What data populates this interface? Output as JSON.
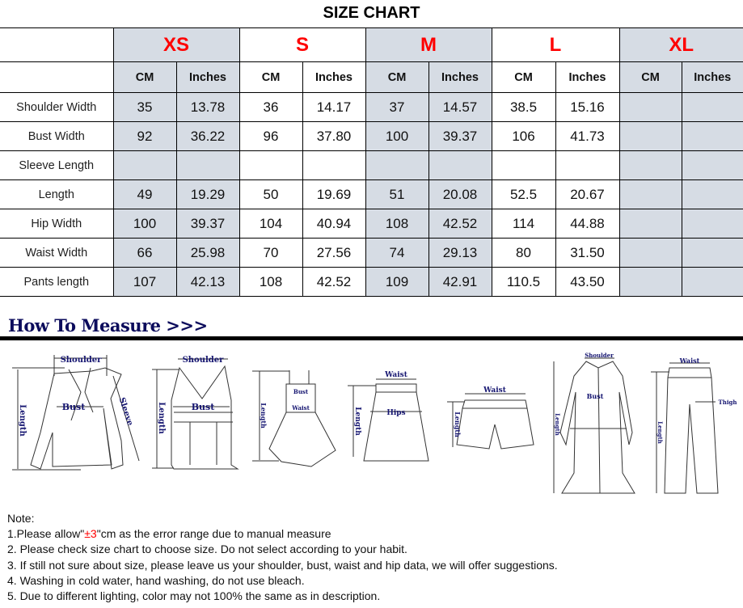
{
  "title": "SIZE CHART",
  "sizes": [
    "XS",
    "S",
    "M",
    "L",
    "XL"
  ],
  "units": [
    "CM",
    "Inches"
  ],
  "rows": [
    {
      "label": "Shoulder Width",
      "values": [
        "35",
        "13.78",
        "36",
        "14.17",
        "37",
        "14.57",
        "38.5",
        "15.16",
        "",
        ""
      ]
    },
    {
      "label": "Bust Width",
      "values": [
        "92",
        "36.22",
        "96",
        "37.80",
        "100",
        "39.37",
        "106",
        "41.73",
        "",
        ""
      ]
    },
    {
      "label": "Sleeve Length",
      "values": [
        "",
        "",
        "",
        "",
        "",
        "",
        "",
        "",
        "",
        ""
      ]
    },
    {
      "label": "Length",
      "values": [
        "49",
        "19.29",
        "50",
        "19.69",
        "51",
        "20.08",
        "52.5",
        "20.67",
        "",
        ""
      ]
    },
    {
      "label": "Hip Width",
      "values": [
        "100",
        "39.37",
        "104",
        "40.94",
        "108",
        "42.52",
        "114",
        "44.88",
        "",
        ""
      ]
    },
    {
      "label": "Waist Width",
      "values": [
        "66",
        "25.98",
        "70",
        "27.56",
        "74",
        "29.13",
        "80",
        "31.50",
        "",
        ""
      ]
    },
    {
      "label": "Pants length",
      "values": [
        "107",
        "42.13",
        "108",
        "42.52",
        "109",
        "42.91",
        "110.5",
        "43.50",
        "",
        ""
      ]
    }
  ],
  "colors": {
    "size_label": "#ff0000",
    "shade": "#d6dce4",
    "heading": "#0c0c5c"
  },
  "how_to_measure": {
    "heading": "How To Measure >>>",
    "figures": [
      {
        "garment": "blouse",
        "labels": {
          "shoulder": "Shoulder",
          "length": "Length",
          "bust": "Bust",
          "sleeve": "Sleeve"
        }
      },
      {
        "garment": "tank-top",
        "labels": {
          "shoulder": "Shoulder",
          "length": "Length",
          "bust": "Bust"
        }
      },
      {
        "garment": "dress",
        "labels": {
          "length": "Length",
          "bust": "Bust",
          "waist": "Waist"
        }
      },
      {
        "garment": "skirt",
        "labels": {
          "waist": "Waist",
          "length": "Length",
          "hips": "Hips"
        }
      },
      {
        "garment": "shorts",
        "labels": {
          "waist": "Waist",
          "length": "Length"
        }
      },
      {
        "garment": "coat",
        "labels": {
          "shoulder": "Shoulder",
          "length": "Length",
          "bust": "Bust"
        }
      },
      {
        "garment": "pants",
        "labels": {
          "waist": "Waist",
          "length": "Length",
          "thigh": "Thigh"
        }
      }
    ]
  },
  "notes": {
    "heading": "Note:",
    "line1_pre": "1.Please allow\"",
    "line1_red": "±3",
    "line1_post": "\"cm as the error range due to manual measure",
    "line2": "2. Please check size chart to choose size. Do not select according to your habit.",
    "line3": "3. If still not sure about size, please leave us your shoulder, bust, waist and hip data, we will offer suggestions.",
    "line4": "4. Washing in cold water, hand washing, do not use bleach.",
    "line5": "5. Due to different lighting, color may not 100% the same as in description."
  }
}
